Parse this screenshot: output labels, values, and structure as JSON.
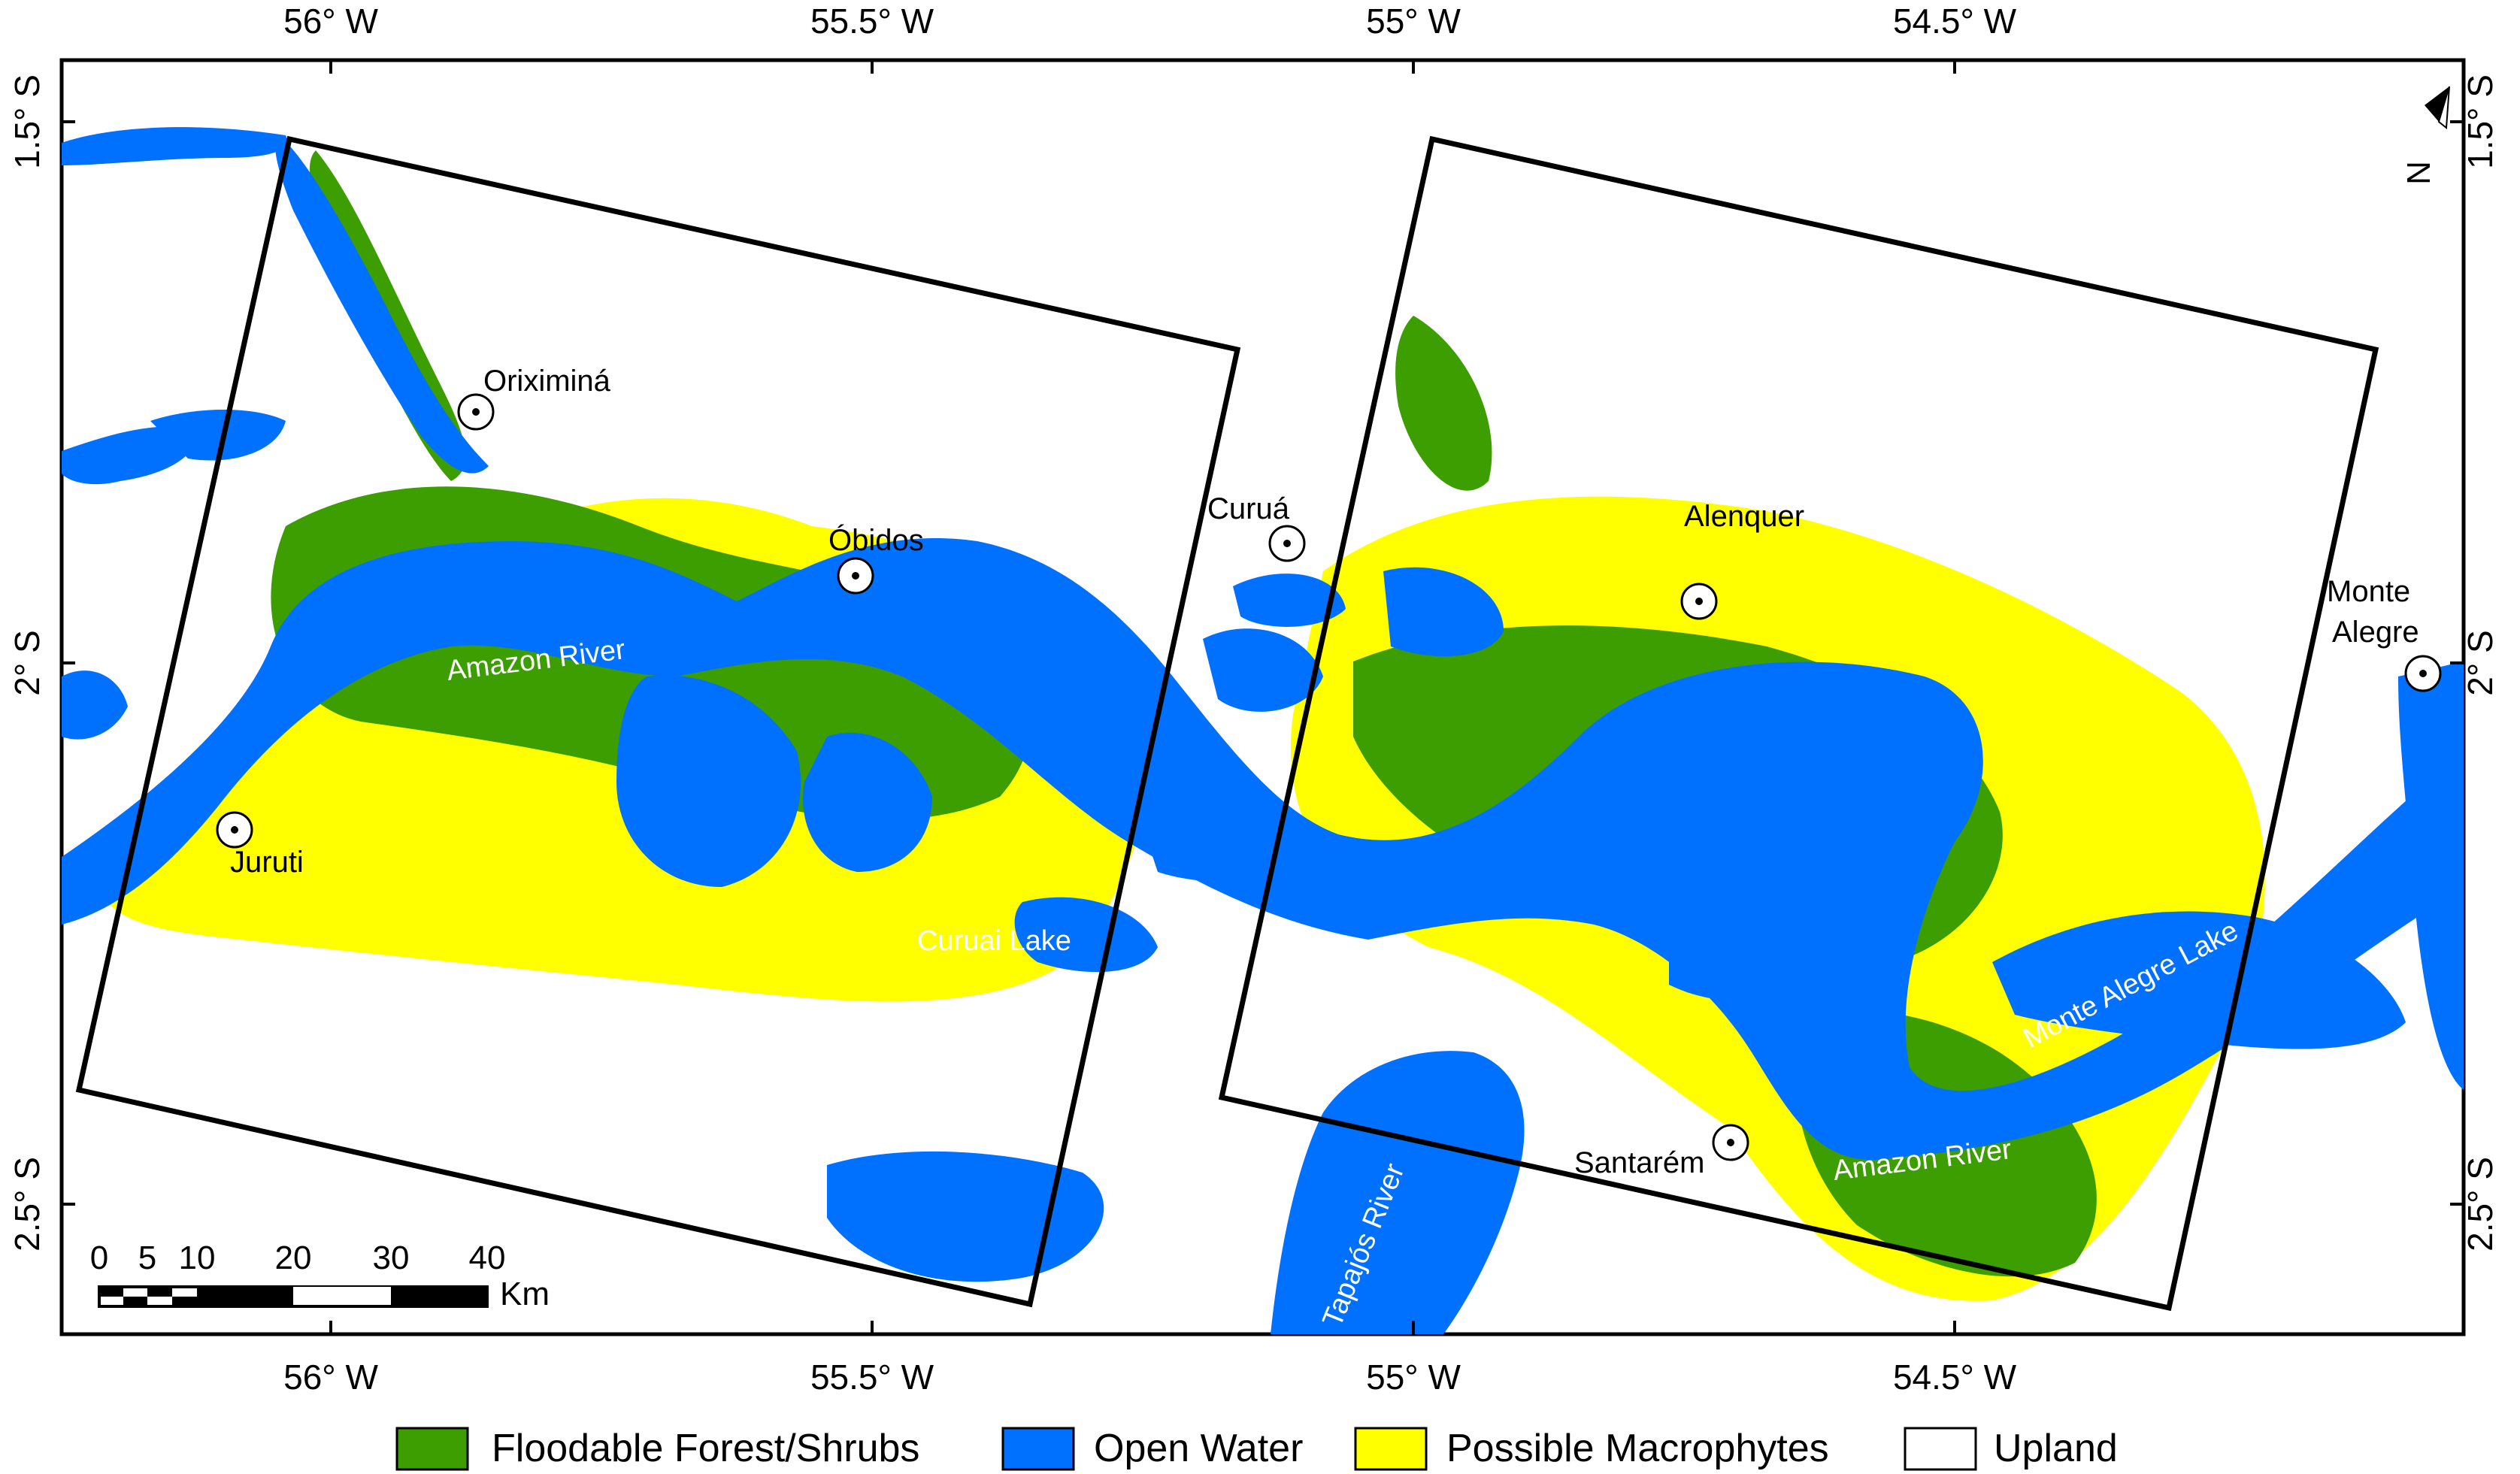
{
  "axes": {
    "top": [
      "56° W",
      "55.5° W",
      "55° W",
      "54.5° W"
    ],
    "bottom": [
      "56° W",
      "55.5° W",
      "55° W",
      "54.5° W"
    ],
    "left": [
      "1.5° S",
      "2° S",
      "2.5° S"
    ],
    "right": [
      "1.5° S",
      "2° S",
      "2.5° S"
    ]
  },
  "places": {
    "oriximina": "Oriximiná",
    "obidos": "Óbidos",
    "curua": "Curuá",
    "alenquer": "Alenquer",
    "monte_alegre_1": "Monte",
    "monte_alegre_2": "Alegre",
    "juruti": "Juruti",
    "santarem": "Santarém"
  },
  "water_labels": {
    "amazon_west": "Amazon River",
    "amazon_east": "Amazon River",
    "curuai": "Curuai Lake",
    "monte_alegre_lake": "Monte Alegre Lake",
    "tapajos": "Tapajós River"
  },
  "scalebar": {
    "ticks": [
      "0",
      "5",
      "10",
      "20",
      "30",
      "40"
    ],
    "unit": "Km"
  },
  "north_arrow": "N",
  "legend": [
    {
      "label": "Floodable Forest/Shrubs",
      "color": "#3c9e00"
    },
    {
      "label": "Open Water",
      "color": "#0070ff"
    },
    {
      "label": "Possible Macrophytes",
      "color": "#ffff00"
    },
    {
      "label": "Upland",
      "color": "#ffffff"
    }
  ]
}
